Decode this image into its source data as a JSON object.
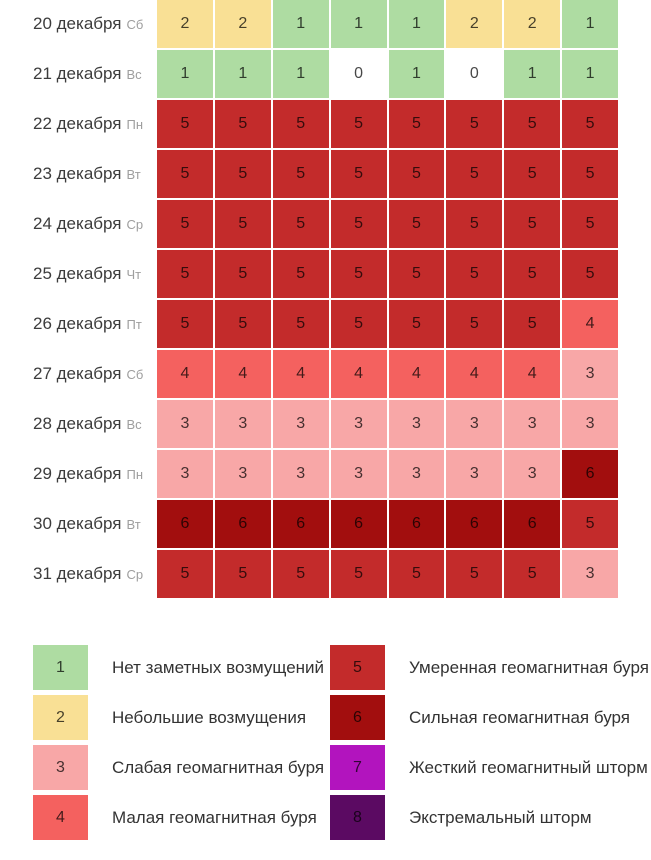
{
  "palette": {
    "0": "#FFFFFF",
    "1": "#AEDCA2",
    "2": "#F9E095",
    "3": "#F8A7A7",
    "4": "#F4615F",
    "5": "#C32B2B",
    "6": "#A20E0E",
    "7": "#B214BE",
    "8": "#5B0A62"
  },
  "chart_data": {
    "type": "heatmap",
    "rows": [
      {
        "date": "20 декабря",
        "weekday": "Сб",
        "values": [
          2,
          2,
          1,
          1,
          1,
          2,
          2,
          1
        ]
      },
      {
        "date": "21 декабря",
        "weekday": "Вс",
        "values": [
          1,
          1,
          1,
          0,
          1,
          0,
          1,
          1
        ]
      },
      {
        "date": "22 декабря",
        "weekday": "Пн",
        "values": [
          5,
          5,
          5,
          5,
          5,
          5,
          5,
          5
        ]
      },
      {
        "date": "23 декабря",
        "weekday": "Вт",
        "values": [
          5,
          5,
          5,
          5,
          5,
          5,
          5,
          5
        ]
      },
      {
        "date": "24 декабря",
        "weekday": "Ср",
        "values": [
          5,
          5,
          5,
          5,
          5,
          5,
          5,
          5
        ]
      },
      {
        "date": "25 декабря",
        "weekday": "Чт",
        "values": [
          5,
          5,
          5,
          5,
          5,
          5,
          5,
          5
        ]
      },
      {
        "date": "26 декабря",
        "weekday": "Пт",
        "values": [
          5,
          5,
          5,
          5,
          5,
          5,
          5,
          4
        ]
      },
      {
        "date": "27 декабря",
        "weekday": "Сб",
        "values": [
          4,
          4,
          4,
          4,
          4,
          4,
          4,
          3
        ]
      },
      {
        "date": "28 декабря",
        "weekday": "Вс",
        "values": [
          3,
          3,
          3,
          3,
          3,
          3,
          3,
          3
        ]
      },
      {
        "date": "29 декабря",
        "weekday": "Пн",
        "values": [
          3,
          3,
          3,
          3,
          3,
          3,
          3,
          6
        ]
      },
      {
        "date": "30 декабря",
        "weekday": "Вт",
        "values": [
          6,
          6,
          6,
          6,
          6,
          6,
          6,
          5
        ]
      },
      {
        "date": "31 декабря",
        "weekday": "Ср",
        "values": [
          5,
          5,
          5,
          5,
          5,
          5,
          5,
          3
        ]
      }
    ],
    "legend": [
      {
        "value": 1,
        "color": "#AEDCA2",
        "label": "Нет заметных возмущений"
      },
      {
        "value": 2,
        "color": "#F9E095",
        "label": "Небольшие возмущения"
      },
      {
        "value": 3,
        "color": "#F8A7A7",
        "label": "Слабая геомагнитная буря"
      },
      {
        "value": 4,
        "color": "#F4615F",
        "label": "Малая геомагнитная буря"
      },
      {
        "value": 5,
        "color": "#C32B2B",
        "label": "Умеренная геомагнитная буря"
      },
      {
        "value": 6,
        "color": "#A20E0E",
        "label": "Сильная геомагнитная буря"
      },
      {
        "value": 7,
        "color": "#B214BE",
        "label": "Жесткий геомагнитный шторм"
      },
      {
        "value": 8,
        "color": "#5B0A62",
        "label": "Экстремальный шторм"
      }
    ],
    "layout": {
      "columns_per_day": 8,
      "grid": "off",
      "legend_position": "bottom-two-columns"
    }
  }
}
